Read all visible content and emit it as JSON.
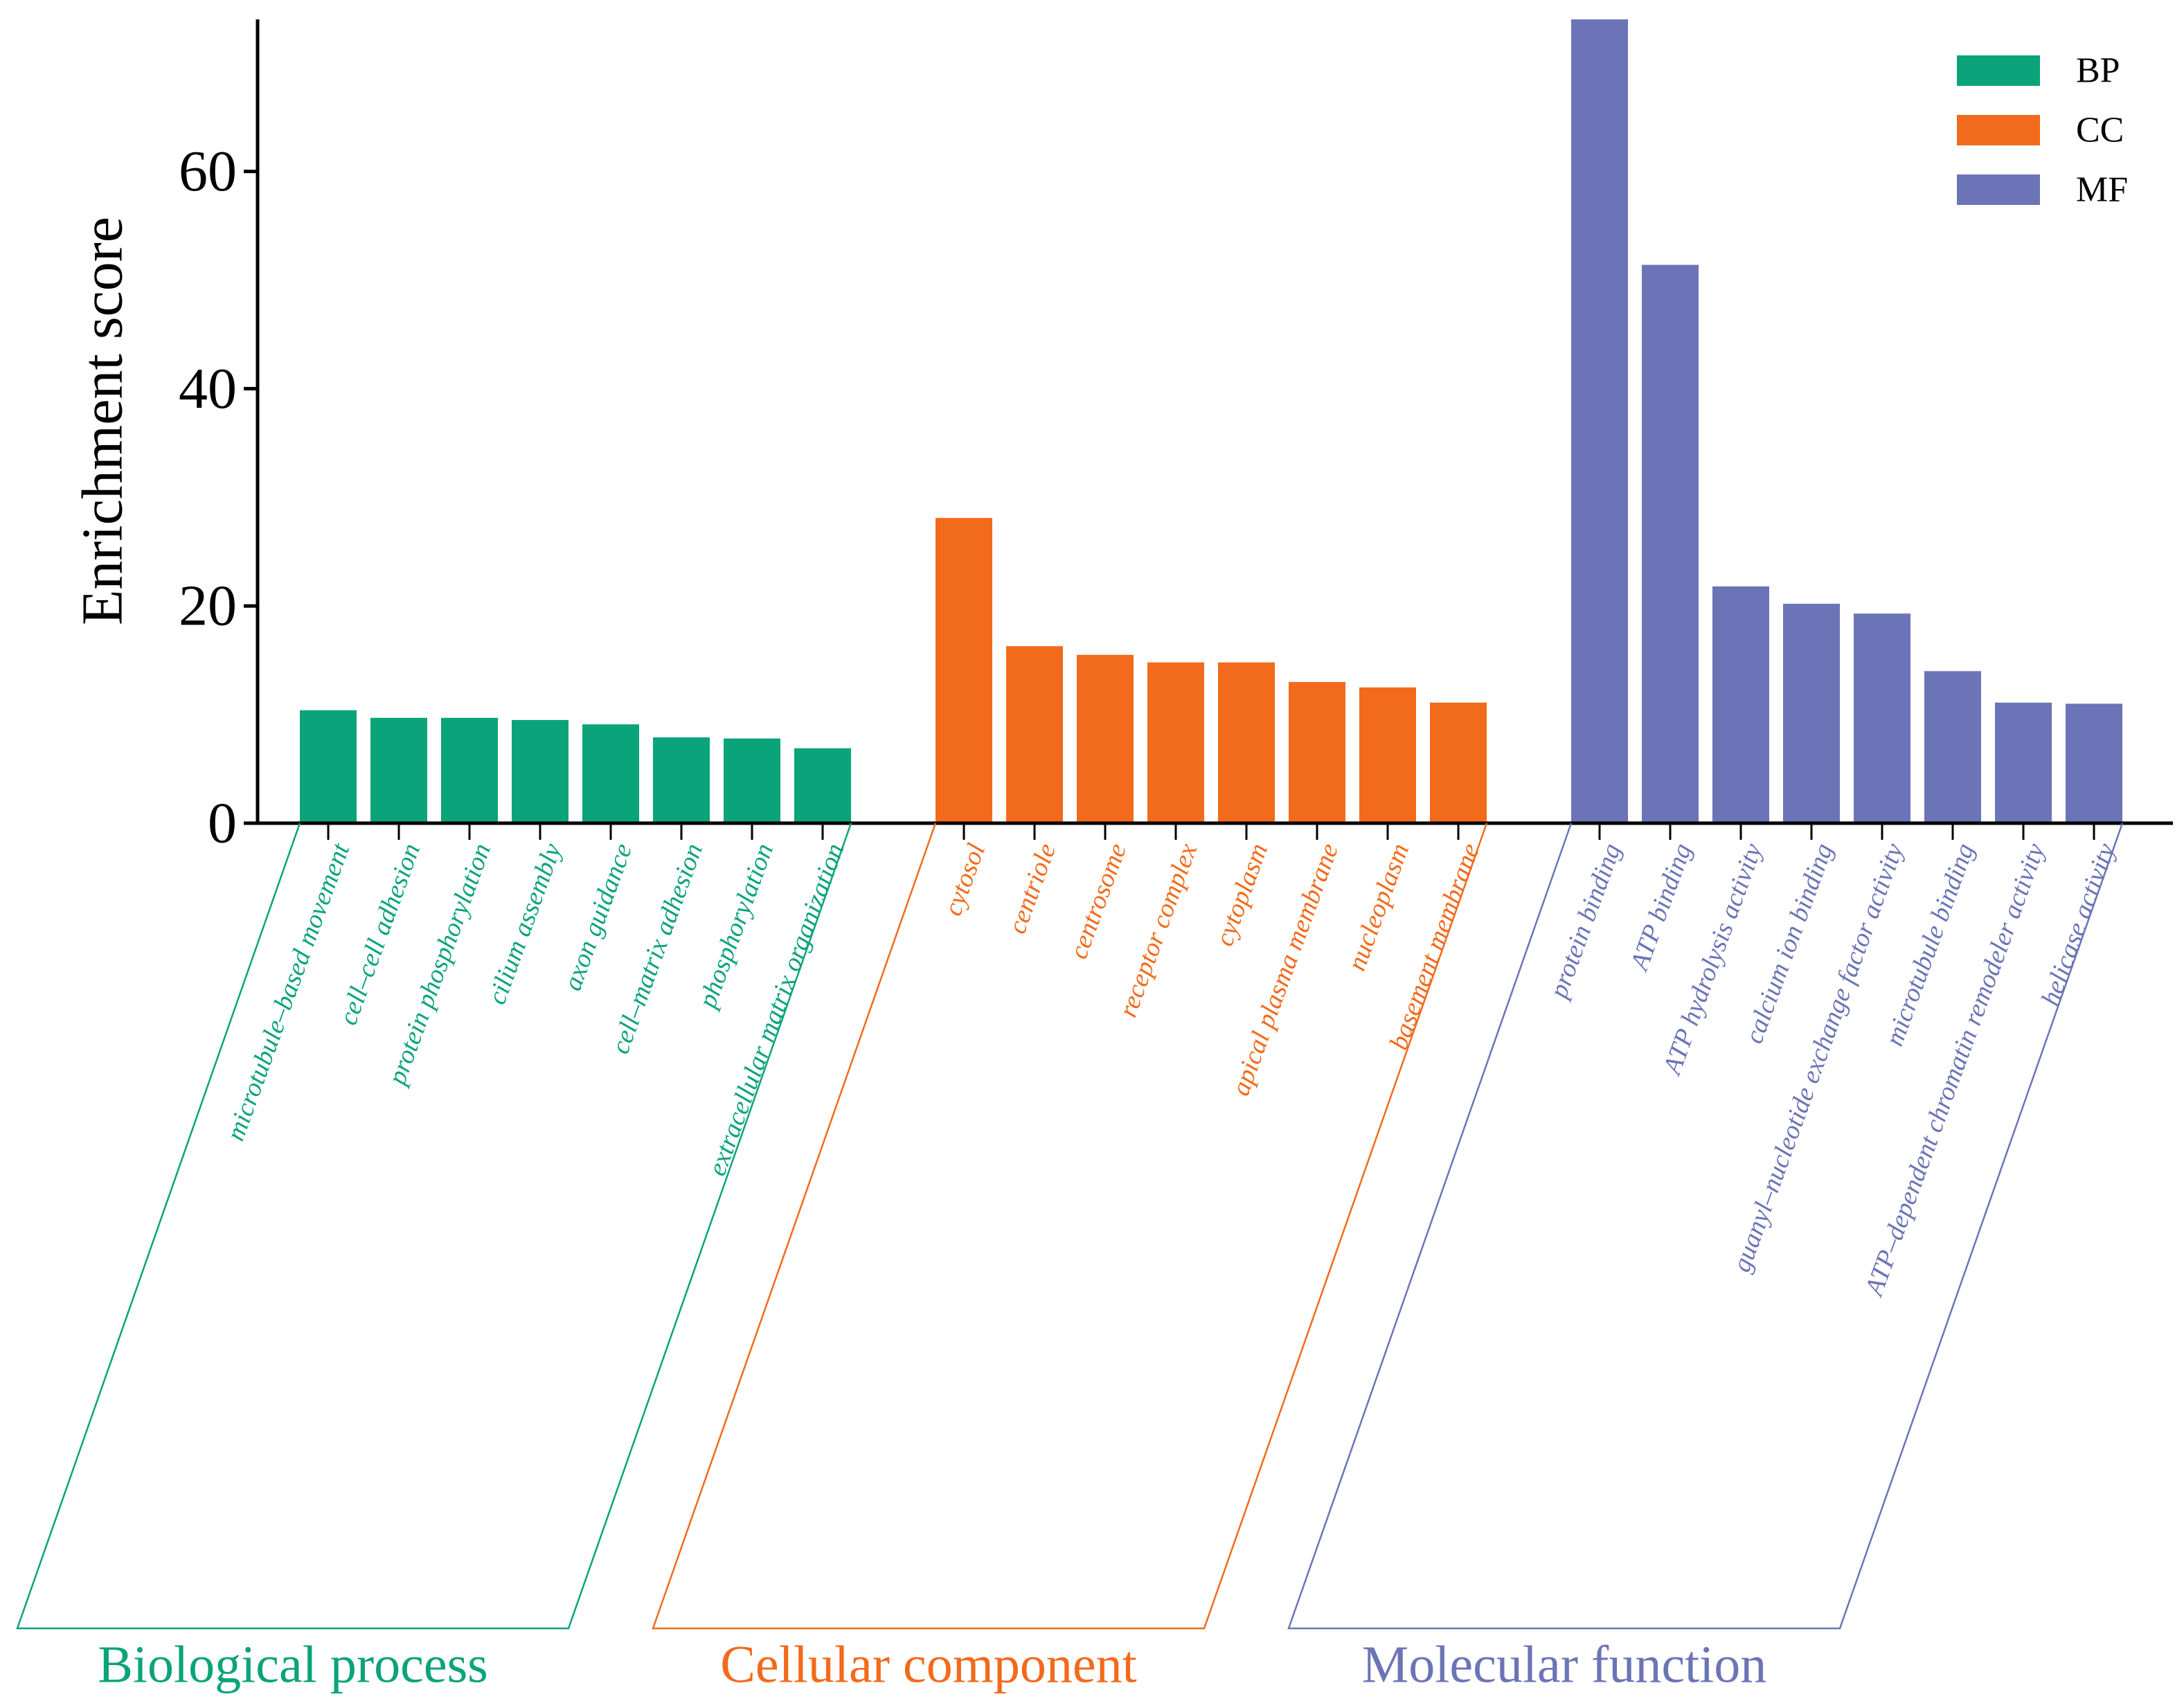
{
  "chart_data": {
    "type": "bar",
    "ylabel": "Enrichment score",
    "ylim": [
      0,
      74
    ],
    "yticks": [
      0,
      20,
      40,
      60
    ],
    "grid": false,
    "legend_position": "top-right",
    "colors": {
      "BP": "#0aa37a",
      "CC": "#f26a1b",
      "MF": "#6b74b6"
    },
    "legend": [
      {
        "key": "BP",
        "label": "BP"
      },
      {
        "key": "CC",
        "label": "CC"
      },
      {
        "key": "MF",
        "label": "MF"
      }
    ],
    "groups": [
      {
        "key": "BP",
        "name": "Biological process",
        "categories": [
          "microtubule–based movement",
          "cell–cell adhesion",
          "protein phosphorylation",
          "cilium assembly",
          "axon guidance",
          "cell–matrix adhesion",
          "phosphorylation",
          "extracellular matrix organization"
        ],
        "values": [
          10.4,
          9.7,
          9.7,
          9.5,
          9.1,
          7.9,
          7.8,
          6.9
        ]
      },
      {
        "key": "CC",
        "name": "Cellular component",
        "categories": [
          "cytosol",
          "centriole",
          "centrosome",
          "receptor complex",
          "cytoplasm",
          "apical plasma membrane",
          "nucleoplasm",
          "basement membrane"
        ],
        "values": [
          28.1,
          16.3,
          15.5,
          14.8,
          14.8,
          13.0,
          12.5,
          11.1
        ]
      },
      {
        "key": "MF",
        "name": "Molecular function",
        "categories": [
          "protein binding",
          "ATP binding",
          "ATP hydrolysis activity",
          "calcium ion binding",
          "guanyl–nucleotide exchange factor activity",
          "microtubule binding",
          "ATP–dependent chromatin remodeler activity",
          "helicase activity"
        ],
        "values": [
          74.0,
          51.4,
          21.8,
          20.2,
          19.3,
          14.0,
          11.1,
          11.0
        ]
      }
    ]
  }
}
